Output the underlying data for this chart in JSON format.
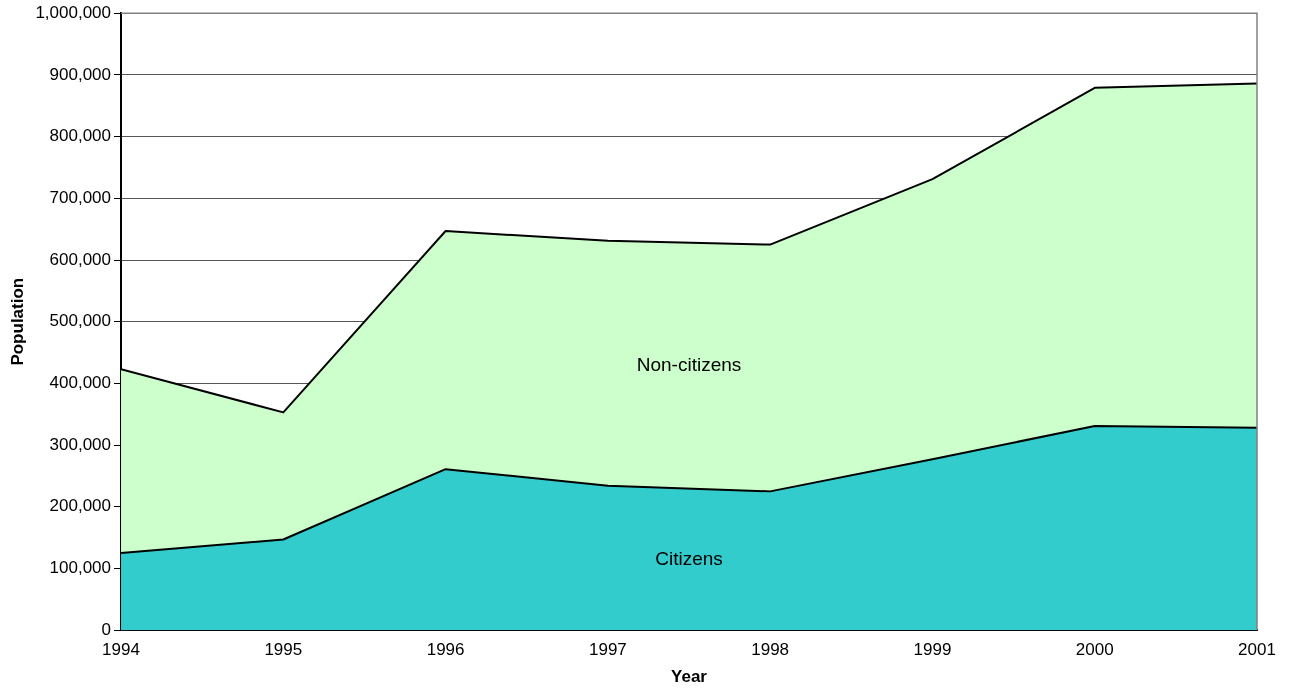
{
  "chart_data": {
    "type": "area",
    "stacked": true,
    "xlabel": "Year",
    "ylabel": "Population",
    "x": [
      1994,
      1995,
      1996,
      1997,
      1998,
      1999,
      2000,
      2001
    ],
    "xlim": [
      1994,
      2001
    ],
    "xticks": [
      1994,
      1995,
      1996,
      1997,
      1998,
      1999,
      2000,
      2001
    ],
    "ylim": [
      0,
      1000000
    ],
    "yticks": [
      {
        "value": 0,
        "label": "0"
      },
      {
        "value": 100000,
        "label": "100,000"
      },
      {
        "value": 200000,
        "label": "200,000"
      },
      {
        "value": 300000,
        "label": "300,000"
      },
      {
        "value": 400000,
        "label": "400,000"
      },
      {
        "value": 500000,
        "label": "500,000"
      },
      {
        "value": 600000,
        "label": "600,000"
      },
      {
        "value": 700000,
        "label": "700,000"
      },
      {
        "value": 800000,
        "label": "800,000"
      },
      {
        "value": 900000,
        "label": "900,000"
      },
      {
        "value": 1000000,
        "label": "1,000,000"
      }
    ],
    "grid": "y",
    "legend": false,
    "series": [
      {
        "name": "Citizens",
        "color": "#33cccc",
        "values": [
          125000,
          147000,
          261000,
          234000,
          225000,
          277000,
          331000,
          328000
        ]
      },
      {
        "name": "Non-citizens",
        "color": "#ccffcc",
        "values": [
          298000,
          206000,
          386000,
          397000,
          400000,
          454000,
          548000,
          558000
        ]
      }
    ]
  }
}
